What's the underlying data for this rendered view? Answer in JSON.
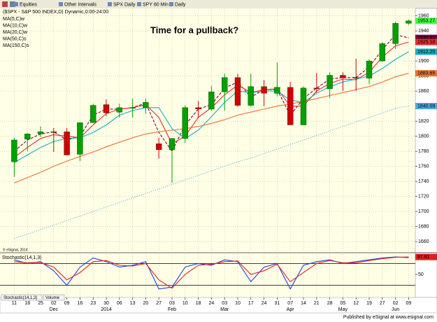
{
  "toolbar": {
    "items": [
      "Equities",
      "Other Intervals",
      "SPX Daily",
      "SPY 60 Min",
      "Daily"
    ]
  },
  "chart_data": [
    {
      "type": "candlestick",
      "title": "($SPX - S&P 500 INDEX,D) Dynamic,0:00-24:00",
      "annotation": "Time for a pullback?",
      "watermark": "© eSignal, 2014",
      "categories": [
        "11",
        "18",
        "25",
        "02",
        "09",
        "16",
        "23",
        "30",
        "06",
        "13",
        "20",
        "27",
        "03",
        "10",
        "18",
        "24",
        "03",
        "10",
        "17",
        "24",
        "31",
        "07",
        "14",
        "21",
        "28",
        "05",
        "12",
        "19",
        "27",
        "02",
        "09"
      ],
      "month_labels": [
        null,
        null,
        null,
        "Dec",
        null,
        null,
        null,
        "2014",
        null,
        null,
        null,
        null,
        "Feb",
        null,
        null,
        null,
        "Mar",
        null,
        null,
        null,
        null,
        "Apr",
        null,
        null,
        null,
        "May",
        null,
        null,
        null,
        "Jun",
        null
      ],
      "open": [
        1766,
        1796,
        1803,
        1806,
        1806,
        1776,
        1818,
        1842,
        1832,
        1838,
        1838,
        1790,
        1782,
        1797,
        1838,
        1836,
        1859,
        1878,
        1841,
        1866,
        1857,
        1865,
        1815,
        1864,
        1863,
        1881,
        1878,
        1877,
        1900,
        1923,
        1950
      ],
      "high": [
        1798,
        1804,
        1813,
        1811,
        1811,
        1818,
        1843,
        1849,
        1843,
        1850,
        1850,
        1798,
        1797,
        1841,
        1847,
        1867,
        1883,
        1883,
        1883,
        1875,
        1898,
        1872,
        1866,
        1884,
        1885,
        1885,
        1903,
        1902,
        1925,
        1952,
        1955
      ],
      "low": [
        1746,
        1780,
        1799,
        1779,
        1775,
        1767,
        1818,
        1827,
        1825,
        1825,
        1830,
        1770,
        1738,
        1791,
        1824,
        1834,
        1834,
        1839,
        1839,
        1840,
        1853,
        1815,
        1815,
        1858,
        1851,
        1860,
        1860,
        1869,
        1899,
        1916,
        1948
      ],
      "close": [
        1795,
        1803,
        1806,
        1805,
        1775,
        1818,
        1841,
        1831,
        1838,
        1838,
        1845,
        1782,
        1797,
        1838,
        1836,
        1859,
        1878,
        1841,
        1866,
        1857,
        1865,
        1815,
        1864,
        1863,
        1881,
        1878,
        1877,
        1900,
        1923,
        1950,
        1953.27
      ],
      "last_value": 1953.27,
      "up_color": "#00a000",
      "down_color": "#d00000",
      "ylim": [
        1648,
        1968
      ],
      "yticks": [
        1660,
        1680,
        1700,
        1720,
        1740,
        1760,
        1780,
        1800,
        1820,
        1860,
        1880,
        1900,
        1940,
        1960
      ],
      "grid": true,
      "series": [
        {
          "name": "MA(5,C)w",
          "color": "#800040",
          "style": "dashed",
          "last_value": 1930.67,
          "values": [
            1780,
            1795,
            1803,
            1806,
            1795,
            1800,
            1828,
            1836,
            1836,
            1838,
            1844,
            1805,
            1780,
            1815,
            1836,
            1842,
            1864,
            1872,
            1852,
            1862,
            1862,
            1828,
            1850,
            1864,
            1876,
            1878,
            1878,
            1892,
            1915,
            1935,
            1930.67
          ]
        },
        {
          "name": "MA(10,C)w",
          "color": "#e03030",
          "style": "solid",
          "last_value": 1925.18,
          "values": [
            1772,
            1785,
            1797,
            1802,
            1800,
            1798,
            1815,
            1830,
            1836,
            1838,
            1842,
            1825,
            1790,
            1800,
            1825,
            1838,
            1855,
            1868,
            1858,
            1862,
            1863,
            1840,
            1840,
            1860,
            1870,
            1876,
            1875,
            1885,
            1905,
            1920,
            1925.18
          ]
        },
        {
          "name": "MA(20,C)w",
          "color": "#10b0c8",
          "style": "solid",
          "last_value": 1912.25,
          "values": [
            1765,
            1775,
            1785,
            1793,
            1797,
            1798,
            1805,
            1815,
            1828,
            1834,
            1838,
            1838,
            1810,
            1797,
            1808,
            1826,
            1845,
            1860,
            1858,
            1860,
            1860,
            1848,
            1845,
            1857,
            1866,
            1872,
            1876,
            1880,
            1890,
            1902,
            1912.25
          ]
        },
        {
          "name": "MA(50,C)s",
          "color": "#f07030",
          "style": "solid",
          "last_value": 1883.65,
          "values": [
            1738,
            1745,
            1752,
            1760,
            1767,
            1773,
            1779,
            1786,
            1792,
            1798,
            1803,
            1806,
            1808,
            1810,
            1813,
            1817,
            1822,
            1828,
            1832,
            1836,
            1840,
            1843,
            1846,
            1850,
            1854,
            1858,
            1862,
            1866,
            1872,
            1879,
            1883.65
          ]
        },
        {
          "name": "MA(150,C)s",
          "color": "#50a8e0",
          "style": "dotted",
          "last_value": 1840.09,
          "values": [
            1664,
            1670,
            1676,
            1682,
            1688,
            1694,
            1700,
            1706,
            1712,
            1718,
            1724,
            1730,
            1736,
            1742,
            1748,
            1754,
            1760,
            1766,
            1771,
            1777,
            1783,
            1789,
            1795,
            1801,
            1807,
            1813,
            1819,
            1825,
            1831,
            1837,
            1840.09
          ]
        }
      ]
    },
    {
      "type": "line",
      "title": "Stochastic(14,1,3)",
      "ylim": [
        0,
        100
      ],
      "yticks": [
        50
      ],
      "levels": [
        20,
        80
      ],
      "series": [
        {
          "color": "#2040e0",
          "values": [
            90,
            80,
            85,
            60,
            20,
            70,
            95,
            85,
            70,
            75,
            85,
            10,
            15,
            70,
            80,
            75,
            90,
            85,
            30,
            70,
            80,
            10,
            75,
            85,
            90,
            80,
            85,
            90,
            95,
            98,
            96
          ]
        },
        {
          "color": "#e02020",
          "last_value": 97.81,
          "values": [
            85,
            82,
            83,
            70,
            35,
            55,
            85,
            88,
            75,
            73,
            80,
            35,
            12,
            50,
            75,
            78,
            85,
            87,
            50,
            60,
            78,
            30,
            55,
            80,
            88,
            82,
            82,
            88,
            93,
            97,
            97.81
          ]
        }
      ]
    }
  ],
  "tabs": [
    "Stochastic(14,1,3)",
    "Volume"
  ],
  "footer": "Published by eSignal at www.esignal.com"
}
